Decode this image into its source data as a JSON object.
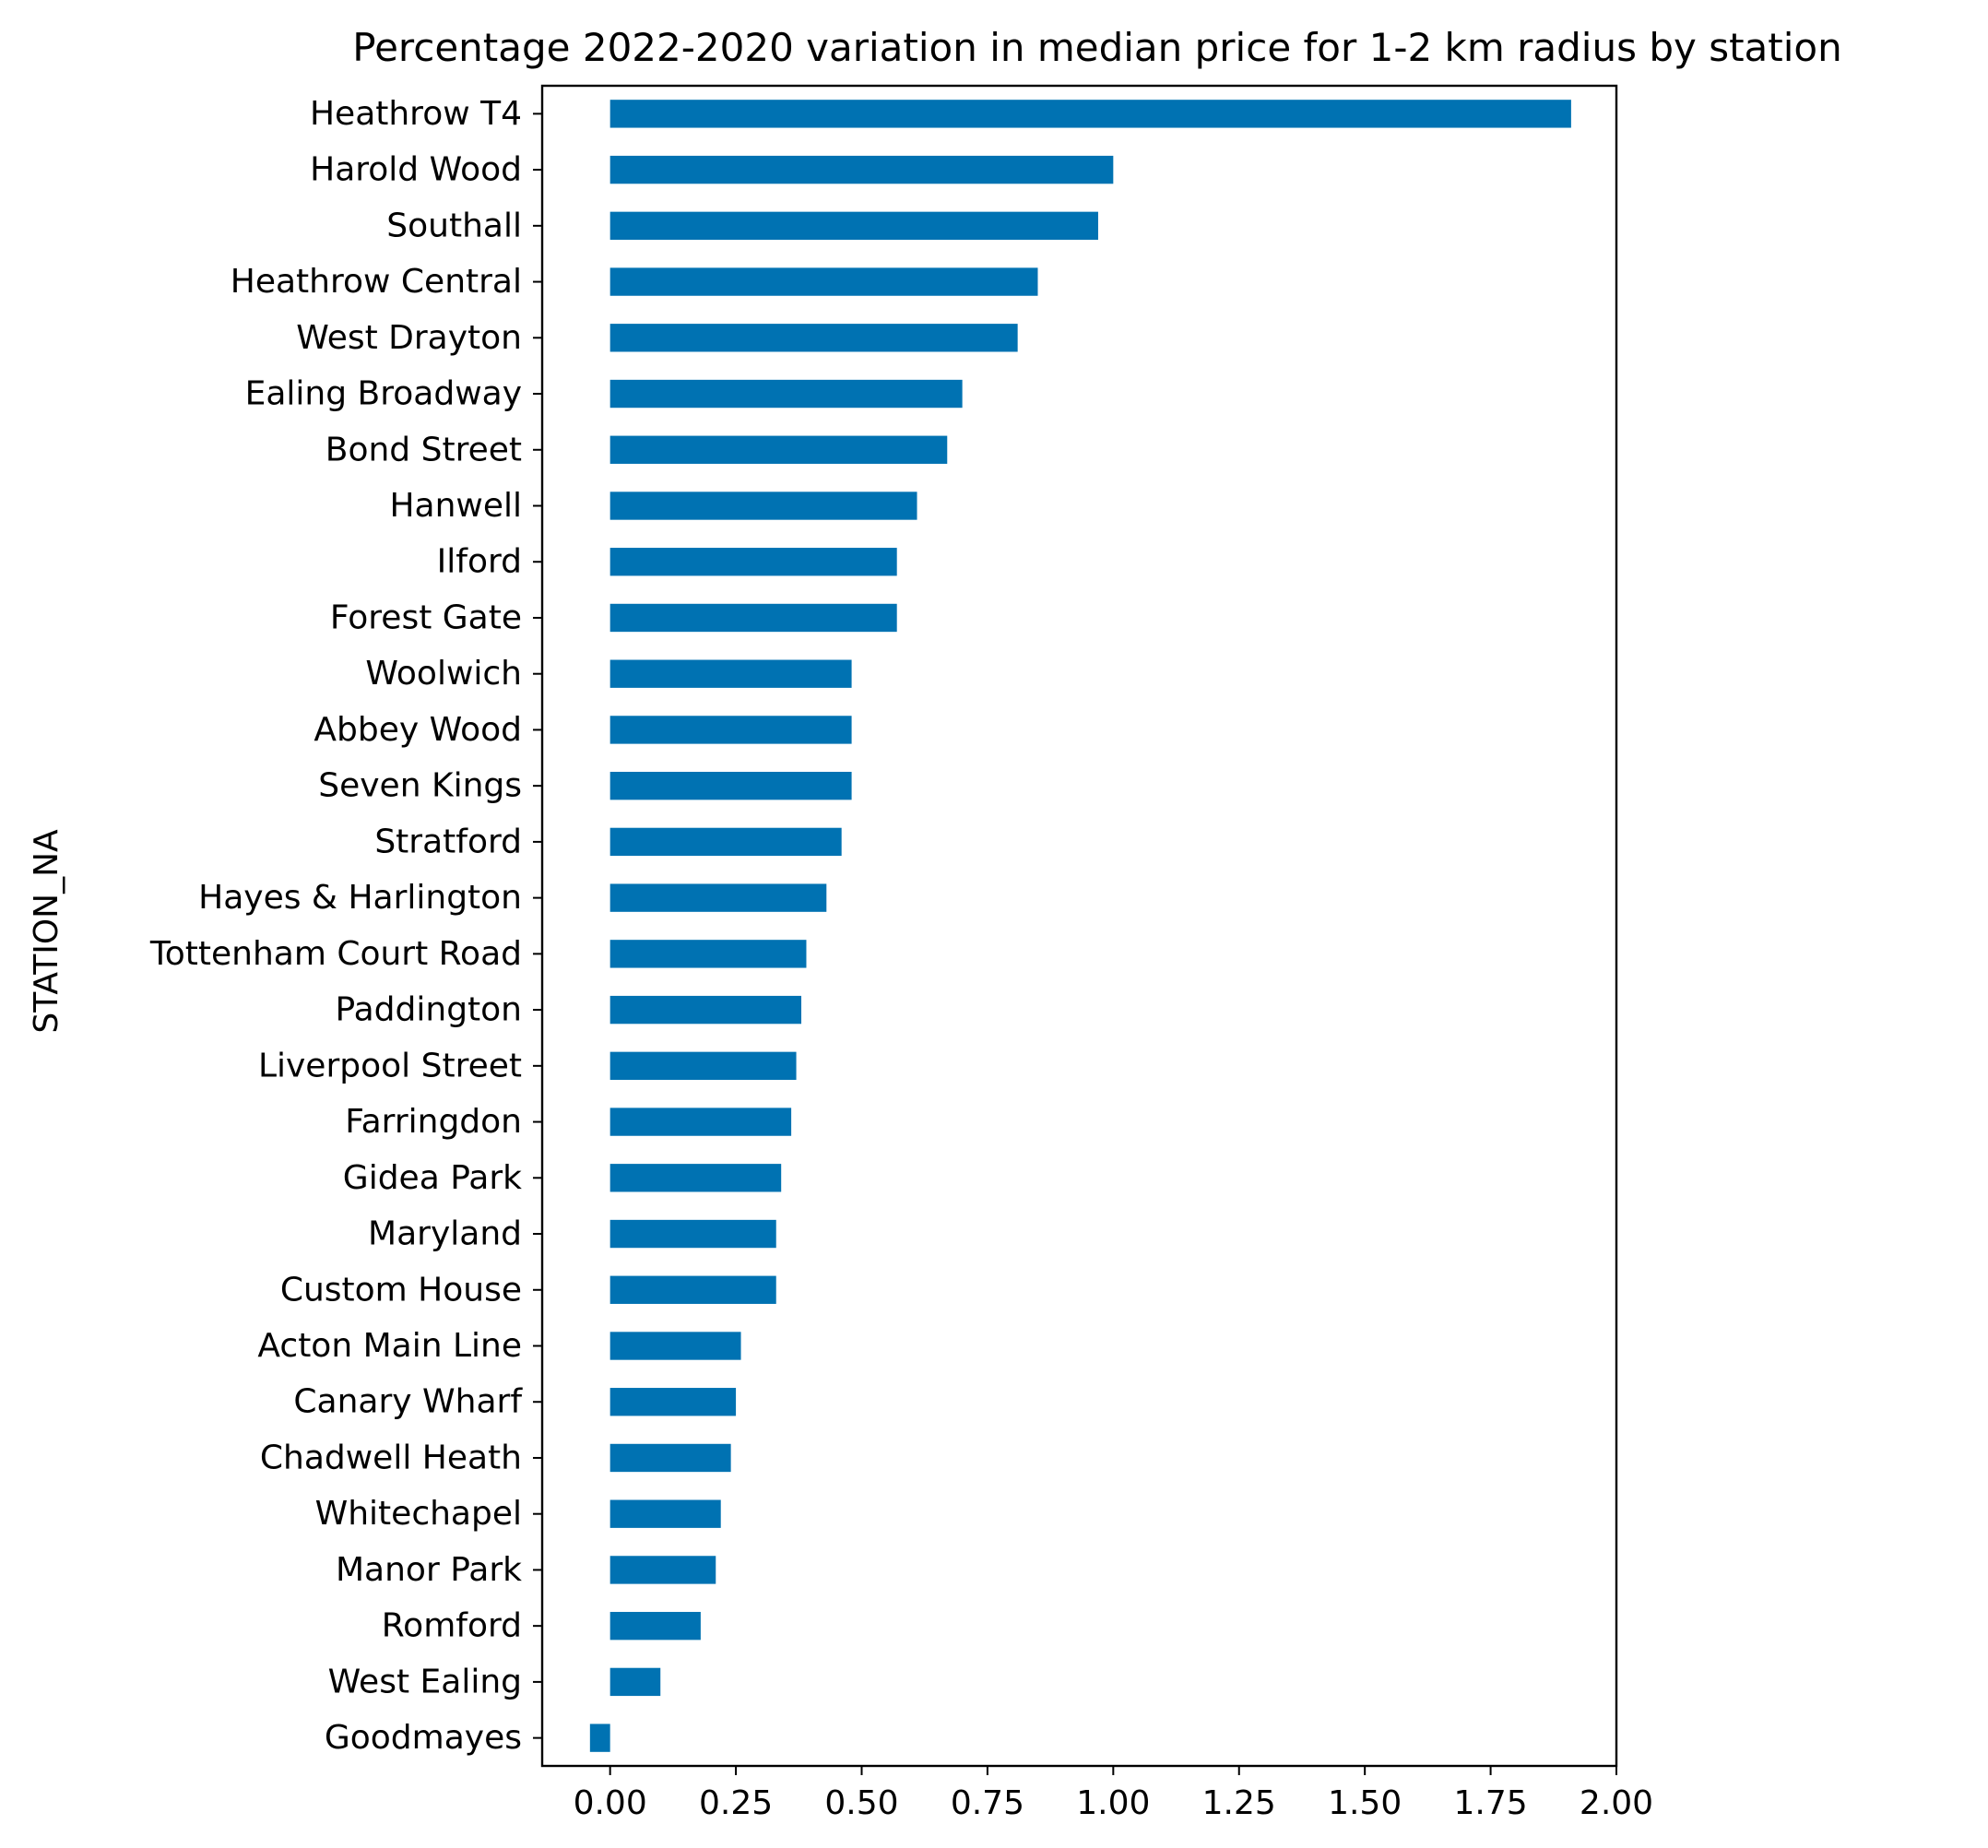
{
  "chart_data": {
    "type": "bar",
    "orientation": "horizontal",
    "title": "Percentage 2022-2020 variation in median price for 1-2 km radius by station",
    "xlabel": "",
    "ylabel": "STATION_NA",
    "xlim": [
      -0.135,
      2.0
    ],
    "x_ticks": [
      "0.00",
      "0.25",
      "0.50",
      "0.75",
      "1.00",
      "1.25",
      "1.50",
      "1.75",
      "2.00"
    ],
    "x_tick_values": [
      0,
      0.25,
      0.5,
      0.75,
      1.0,
      1.25,
      1.5,
      1.75,
      2.0
    ],
    "grid": false,
    "legend": "none",
    "bar_color": "#0072b2",
    "categories": [
      "Heathrow T4",
      "Harold Wood",
      "Southall",
      "Heathrow Central",
      "West Drayton",
      "Ealing Broadway",
      "Bond Street",
      "Hanwell",
      "Ilford",
      "Forest Gate",
      "Woolwich",
      "Abbey Wood",
      "Seven Kings",
      "Stratford",
      "Hayes & Harlington",
      "Tottenham Court Road",
      "Paddington",
      "Liverpool Street",
      "Farringdon",
      "Gidea Park",
      "Maryland",
      "Custom House",
      "Acton Main Line",
      "Canary Wharf",
      "Chadwell Heath",
      "Whitechapel",
      "Manor Park",
      "Romford",
      "West Ealing",
      "Goodmayes"
    ],
    "values": [
      1.91,
      1.0,
      0.97,
      0.85,
      0.81,
      0.7,
      0.67,
      0.61,
      0.57,
      0.57,
      0.48,
      0.48,
      0.48,
      0.46,
      0.43,
      0.39,
      0.38,
      0.37,
      0.36,
      0.34,
      0.33,
      0.33,
      0.26,
      0.25,
      0.24,
      0.22,
      0.21,
      0.18,
      0.1,
      -0.04
    ]
  }
}
